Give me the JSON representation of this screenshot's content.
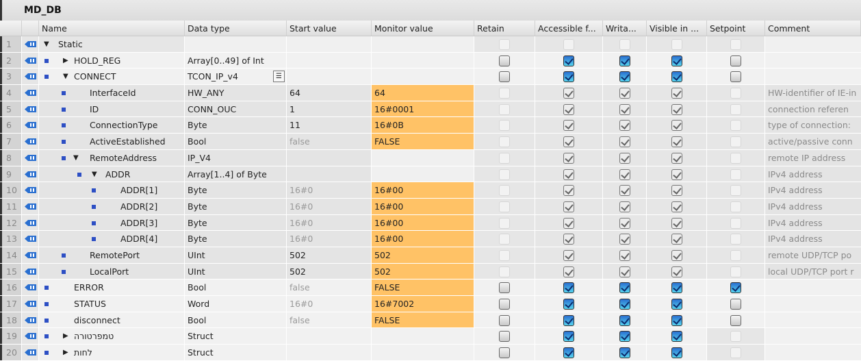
{
  "title": "MD_DB",
  "columns": [
    "Name",
    "Data type",
    "Start value",
    "Monitor value",
    "Retain",
    "Accessible f...",
    "Writa...",
    "Visible in ...",
    "Setpoint",
    "Comment"
  ],
  "rows": [
    {
      "n": "1",
      "level": 0,
      "bullet": false,
      "arrow": "down",
      "name": "Static",
      "type": "",
      "start": "",
      "monitor": "",
      "state": "static",
      "checks": [
        0,
        0,
        0,
        0,
        0
      ],
      "comment": ""
    },
    {
      "n": "2",
      "level": 1,
      "bullet": true,
      "arrow": "right",
      "name": "HOLD_REG",
      "type": "Array[0..49] of Int",
      "start": "",
      "monitor": "",
      "state": "act",
      "checks": [
        0,
        1,
        1,
        1,
        0
      ],
      "comment": ""
    },
    {
      "n": "3",
      "level": 1,
      "bullet": true,
      "arrow": "down",
      "name": "CONNECT",
      "type": "TCON_IP_v4",
      "start": "",
      "monitor": "",
      "state": "act",
      "checks": [
        0,
        1,
        1,
        1,
        0
      ],
      "comment": "",
      "typeButton": true
    },
    {
      "n": "4",
      "level": 2,
      "bullet": true,
      "arrow": "",
      "name": "InterfaceId",
      "type": "HW_ANY",
      "start": "64",
      "monitor": "64",
      "state": "dis",
      "checks": [
        0,
        1,
        1,
        1,
        0
      ],
      "comment": "HW-identifier of IE-in"
    },
    {
      "n": "5",
      "level": 2,
      "bullet": true,
      "arrow": "",
      "name": "ID",
      "type": "CONN_OUC",
      "start": "1",
      "monitor": "16#0001",
      "state": "dis",
      "checks": [
        0,
        1,
        1,
        1,
        0
      ],
      "comment": "connection referen"
    },
    {
      "n": "6",
      "level": 2,
      "bullet": true,
      "arrow": "",
      "name": "ConnectionType",
      "type": "Byte",
      "start": "11",
      "monitor": "16#0B",
      "state": "dis",
      "checks": [
        0,
        1,
        1,
        1,
        0
      ],
      "comment": "type of connection:"
    },
    {
      "n": "7",
      "level": 2,
      "bullet": true,
      "arrow": "",
      "name": "ActiveEstablished",
      "type": "Bool",
      "start": "false",
      "startGrey": true,
      "monitor": "FALSE",
      "state": "dis",
      "checks": [
        0,
        1,
        1,
        1,
        0
      ],
      "comment": "active/passive conn"
    },
    {
      "n": "8",
      "level": 2,
      "bullet": true,
      "arrow": "down",
      "name": "RemoteAddress",
      "type": "IP_V4",
      "start": "",
      "monitor": "",
      "state": "dis",
      "checks": [
        0,
        1,
        1,
        1,
        0
      ],
      "comment": "remote IP address"
    },
    {
      "n": "9",
      "level": 3,
      "bullet": true,
      "arrow": "down",
      "name": "ADDR",
      "type": "Array[1..4] of Byte",
      "start": "",
      "monitor": "",
      "state": "dis",
      "checks": [
        0,
        1,
        1,
        1,
        0
      ],
      "comment": "IPv4 address"
    },
    {
      "n": "10",
      "level": 4,
      "bullet": true,
      "arrow": "",
      "name": "ADDR[1]",
      "type": "Byte",
      "start": "16#0",
      "startGrey": true,
      "monitor": "16#00",
      "state": "dis",
      "checks": [
        0,
        1,
        1,
        1,
        0
      ],
      "comment": "IPv4 address"
    },
    {
      "n": "11",
      "level": 4,
      "bullet": true,
      "arrow": "",
      "name": "ADDR[2]",
      "type": "Byte",
      "start": "16#0",
      "startGrey": true,
      "monitor": "16#00",
      "state": "dis",
      "checks": [
        0,
        1,
        1,
        1,
        0
      ],
      "comment": "IPv4 address"
    },
    {
      "n": "12",
      "level": 4,
      "bullet": true,
      "arrow": "",
      "name": "ADDR[3]",
      "type": "Byte",
      "start": "16#0",
      "startGrey": true,
      "monitor": "16#00",
      "state": "dis",
      "checks": [
        0,
        1,
        1,
        1,
        0
      ],
      "comment": "IPv4 address"
    },
    {
      "n": "13",
      "level": 4,
      "bullet": true,
      "arrow": "",
      "name": "ADDR[4]",
      "type": "Byte",
      "start": "16#0",
      "startGrey": true,
      "monitor": "16#00",
      "state": "dis",
      "checks": [
        0,
        1,
        1,
        1,
        0
      ],
      "comment": "IPv4 address"
    },
    {
      "n": "14",
      "level": 2,
      "bullet": true,
      "arrow": "",
      "name": "RemotePort",
      "type": "UInt",
      "start": "502",
      "monitor": "502",
      "state": "dis",
      "checks": [
        0,
        1,
        1,
        1,
        0
      ],
      "comment": "remote UDP/TCP po"
    },
    {
      "n": "15",
      "level": 2,
      "bullet": true,
      "arrow": "",
      "name": "LocalPort",
      "type": "UInt",
      "start": "502",
      "monitor": "502",
      "state": "dis",
      "checks": [
        0,
        1,
        1,
        1,
        0
      ],
      "comment": "local UDP/TCP port r"
    },
    {
      "n": "16",
      "level": 1,
      "bullet": true,
      "arrow": "",
      "name": "ERROR",
      "type": "Bool",
      "start": "false",
      "startGrey": true,
      "monitor": "FALSE",
      "state": "act",
      "checks": [
        0,
        1,
        1,
        1,
        1
      ],
      "comment": ""
    },
    {
      "n": "17",
      "level": 1,
      "bullet": true,
      "arrow": "",
      "name": "STATUS",
      "type": "Word",
      "start": "16#0",
      "startGrey": true,
      "monitor": "16#7002",
      "state": "act",
      "checks": [
        0,
        1,
        1,
        1,
        0
      ],
      "comment": ""
    },
    {
      "n": "18",
      "level": 1,
      "bullet": true,
      "arrow": "",
      "name": "disconnect",
      "type": "Bool",
      "start": "false",
      "startGrey": true,
      "monitor": "FALSE",
      "state": "act",
      "checks": [
        0,
        1,
        1,
        1,
        0
      ],
      "comment": ""
    },
    {
      "n": "19",
      "level": 1,
      "bullet": true,
      "arrow": "right",
      "name": "טמפרטורה",
      "type": "Struct",
      "start": "",
      "monitor": "",
      "state": "act",
      "checks": [
        0,
        1,
        1,
        1,
        0
      ],
      "setpointDisabled": true,
      "comment": ""
    },
    {
      "n": "20",
      "level": 1,
      "bullet": true,
      "arrow": "right",
      "name": "לחות",
      "type": "Struct",
      "start": "",
      "monitor": "",
      "state": "act",
      "checks": [
        0,
        1,
        1,
        1,
        0
      ],
      "setpointDisabled": true,
      "comment": ""
    }
  ],
  "colors": {
    "monitor_highlight": "#ffc266",
    "checked": "#2a6fd0",
    "bullet": "#2d4fc4"
  }
}
